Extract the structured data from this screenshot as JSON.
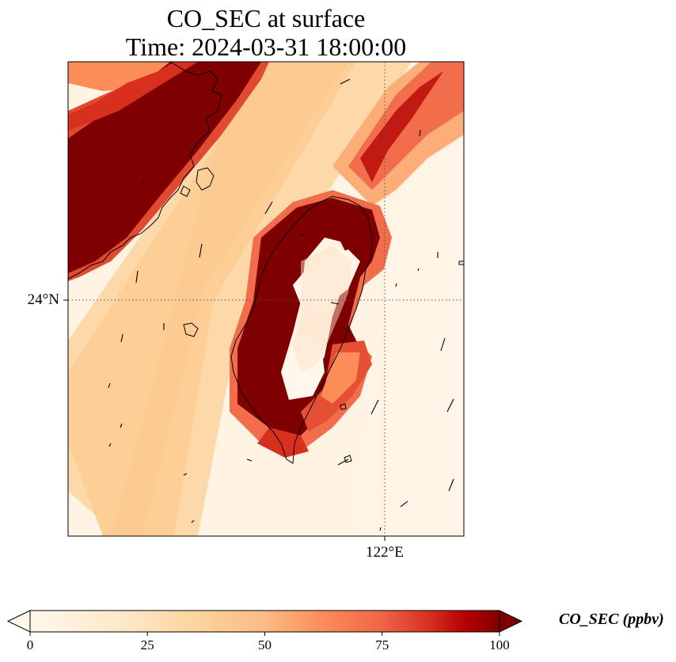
{
  "title_line1": "CO_SEC at surface",
  "title_line2": "Time: 2024-03-31 18:00:00",
  "map": {
    "lat_tick_label": "24°N",
    "lon_tick_label": "122°E",
    "gridlines": "dotted"
  },
  "colorbar": {
    "label": "CO_SEC (ppbv)",
    "min": 0,
    "max": 100,
    "extend": "both",
    "colormap": "OrRd",
    "ticks": [
      {
        "value": 0,
        "label": "0"
      },
      {
        "value": 25,
        "label": "25"
      },
      {
        "value": 50,
        "label": "50"
      },
      {
        "value": 75,
        "label": "75"
      },
      {
        "value": 100,
        "label": "100"
      }
    ],
    "colors": [
      "#fff7ec",
      "#fdd49e",
      "#fc8d59",
      "#d7301f",
      "#7f0000"
    ]
  }
}
